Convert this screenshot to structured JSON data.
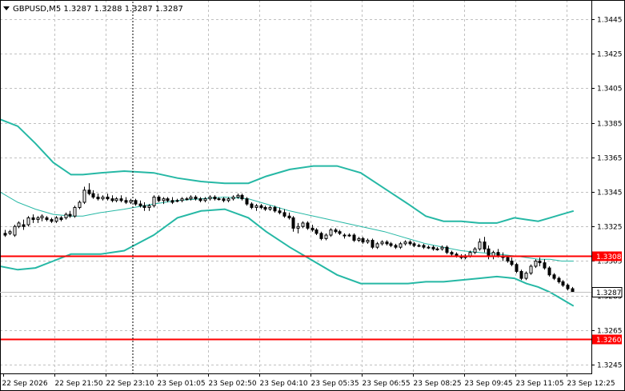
{
  "window": {
    "title": "GBPUSD,M5  1.3287 1.3288 1.3287 1.3287",
    "collapse_icon": "triangle-down-icon"
  },
  "colors": {
    "background": "#ffffff",
    "grid": "#c0c0c0",
    "axis": "#000000",
    "candles": "#000000",
    "bollinger": "#26b8a5",
    "level_line": "#ff0000",
    "level_tag_text": "#ffffff",
    "price_tag_bg": "#ffffff",
    "price_tag_text": "#000000"
  },
  "chart_data": {
    "type": "candlestick",
    "symbol": "GBPUSD",
    "timeframe": "M5",
    "ohlc_header": {
      "open": 1.3287,
      "high": 1.3288,
      "low": 1.3287,
      "close": 1.3287
    },
    "y_ticks": [
      "1.3445",
      "1.3425",
      "1.3405",
      "1.3385",
      "1.3365",
      "1.3345",
      "1.3325",
      "1.3305",
      "1.3285",
      "1.3265",
      "1.3245"
    ],
    "ylim": [
      1.324,
      1.3456
    ],
    "x_labels": [
      "22 Sep 2026",
      "22 Sep 21:50",
      "22 Sep 23:10",
      "23 Sep 01:05",
      "23 Sep 02:50",
      "23 Sep 04:10",
      "23 Sep 05:35",
      "23 Sep 06:55",
      "23 Sep 08:25",
      "23 Sep 09:45",
      "23 Sep 11:05",
      "23 Sep 12:25"
    ],
    "grid": true,
    "current_price": "1.3287",
    "levels": [
      {
        "label": "1.3308",
        "value": 1.3308
      },
      {
        "label": "1.3260",
        "value": 1.326
      }
    ],
    "bollinger_bands": {
      "x": [
        0,
        0.03,
        0.06,
        0.09,
        0.12,
        0.14,
        0.17,
        0.21,
        0.26,
        0.3,
        0.34,
        0.38,
        0.42,
        0.45,
        0.49,
        0.53,
        0.57,
        0.61,
        0.65,
        0.69,
        0.72,
        0.75,
        0.78,
        0.81,
        0.84,
        0.87,
        0.89,
        0.91,
        0.93,
        0.95,
        0.97
      ],
      "upper": [
        1.3387,
        1.3383,
        1.3373,
        1.3362,
        1.3355,
        1.3355,
        1.3356,
        1.3357,
        1.3356,
        1.3353,
        1.3351,
        1.335,
        1.335,
        1.3354,
        1.3358,
        1.336,
        1.336,
        1.3356,
        1.3347,
        1.3338,
        1.3331,
        1.3328,
        1.3328,
        1.3327,
        1.3327,
        1.333,
        1.3329,
        1.3328,
        1.333,
        1.3332,
        1.3334
      ],
      "middle": [
        1.3345,
        1.3339,
        1.3335,
        1.3332,
        1.3331,
        1.3331,
        1.3333,
        1.3335,
        1.3338,
        1.334,
        1.3341,
        1.3342,
        1.3341,
        1.3338,
        1.3334,
        1.3331,
        1.3328,
        1.3325,
        1.3322,
        1.3318,
        1.3315,
        1.3313,
        1.3311,
        1.331,
        1.3309,
        1.3308,
        1.3307,
        1.3306,
        1.3306,
        1.3305,
        1.3305
      ],
      "lower": [
        1.3302,
        1.33,
        1.3301,
        1.3305,
        1.3309,
        1.3309,
        1.3309,
        1.3311,
        1.332,
        1.333,
        1.3334,
        1.3335,
        1.333,
        1.3322,
        1.3313,
        1.3305,
        1.3297,
        1.3292,
        1.3292,
        1.3292,
        1.3293,
        1.3293,
        1.3294,
        1.3295,
        1.3296,
        1.3295,
        1.3292,
        1.329,
        1.3287,
        1.3283,
        1.3279
      ]
    },
    "candles": [
      [
        1.3321,
        1.3323,
        1.3319,
        1.332
      ],
      [
        1.3321,
        1.3323,
        1.332,
        1.3322
      ],
      [
        1.332,
        1.3326,
        1.3319,
        1.3325
      ],
      [
        1.3325,
        1.3328,
        1.3324,
        1.3327
      ],
      [
        1.3326,
        1.3329,
        1.3323,
        1.3325
      ],
      [
        1.3326,
        1.3331,
        1.3325,
        1.333
      ],
      [
        1.333,
        1.3332,
        1.3327,
        1.3329
      ],
      [
        1.3329,
        1.3331,
        1.3327,
        1.333
      ],
      [
        1.333,
        1.3332,
        1.3328,
        1.3331
      ],
      [
        1.333,
        1.3331,
        1.3328,
        1.3329
      ],
      [
        1.3329,
        1.333,
        1.3327,
        1.3328
      ],
      [
        1.3328,
        1.3331,
        1.3327,
        1.333
      ],
      [
        1.333,
        1.3331,
        1.3328,
        1.3329
      ],
      [
        1.333,
        1.3333,
        1.3329,
        1.3332
      ],
      [
        1.3332,
        1.3334,
        1.333,
        1.3331
      ],
      [
        1.3331,
        1.3337,
        1.333,
        1.3336
      ],
      [
        1.3336,
        1.334,
        1.3335,
        1.3339
      ],
      [
        1.3339,
        1.3348,
        1.3338,
        1.3346
      ],
      [
        1.3346,
        1.335,
        1.3343,
        1.3344
      ],
      [
        1.3344,
        1.3346,
        1.3341,
        1.3342
      ],
      [
        1.3342,
        1.3344,
        1.334,
        1.3341
      ],
      [
        1.3341,
        1.3343,
        1.334,
        1.3342
      ],
      [
        1.3342,
        1.3344,
        1.334,
        1.3341
      ],
      [
        1.3341,
        1.3343,
        1.3339,
        1.334
      ],
      [
        1.334,
        1.3342,
        1.3339,
        1.3341
      ],
      [
        1.3341,
        1.3343,
        1.3339,
        1.334
      ],
      [
        1.334,
        1.3342,
        1.3338,
        1.3339
      ],
      [
        1.3339,
        1.3341,
        1.3338,
        1.334
      ],
      [
        1.334,
        1.3341,
        1.3337,
        1.3338
      ],
      [
        1.3338,
        1.334,
        1.3336,
        1.3337
      ],
      [
        1.3337,
        1.3339,
        1.3334,
        1.3336
      ],
      [
        1.3336,
        1.3338,
        1.3334,
        1.3337
      ],
      [
        1.3337,
        1.3343,
        1.3336,
        1.3342
      ],
      [
        1.3342,
        1.3343,
        1.3339,
        1.334
      ],
      [
        1.334,
        1.3342,
        1.3338,
        1.3341
      ],
      [
        1.3341,
        1.3342,
        1.3339,
        1.334
      ],
      [
        1.334,
        1.3342,
        1.3338,
        1.3339
      ],
      [
        1.334,
        1.3341,
        1.3339,
        1.334
      ],
      [
        1.334,
        1.3342,
        1.3339,
        1.3341
      ],
      [
        1.3341,
        1.3342,
        1.334,
        1.3341
      ],
      [
        1.3341,
        1.3343,
        1.334,
        1.3342
      ],
      [
        1.3342,
        1.3343,
        1.334,
        1.3341
      ],
      [
        1.3341,
        1.3342,
        1.3339,
        1.334
      ],
      [
        1.334,
        1.3342,
        1.3339,
        1.3341
      ],
      [
        1.3341,
        1.3343,
        1.334,
        1.3342
      ],
      [
        1.3342,
        1.3343,
        1.334,
        1.3341
      ],
      [
        1.3341,
        1.3342,
        1.334,
        1.3341
      ],
      [
        1.3341,
        1.3342,
        1.3339,
        1.334
      ],
      [
        1.334,
        1.3342,
        1.3339,
        1.3341
      ],
      [
        1.3341,
        1.3343,
        1.334,
        1.3342
      ],
      [
        1.3342,
        1.3344,
        1.3341,
        1.3343
      ],
      [
        1.3343,
        1.3344,
        1.334,
        1.3341
      ],
      [
        1.3341,
        1.3342,
        1.3337,
        1.3338
      ],
      [
        1.3338,
        1.3339,
        1.3335,
        1.3336
      ],
      [
        1.3336,
        1.3338,
        1.3334,
        1.3337
      ],
      [
        1.3337,
        1.3338,
        1.3335,
        1.3336
      ],
      [
        1.3336,
        1.3337,
        1.3334,
        1.3335
      ],
      [
        1.3335,
        1.3337,
        1.3334,
        1.3336
      ],
      [
        1.3336,
        1.3337,
        1.3333,
        1.3334
      ],
      [
        1.3334,
        1.3336,
        1.3332,
        1.3333
      ],
      [
        1.3333,
        1.3335,
        1.333,
        1.3331
      ],
      [
        1.3331,
        1.3333,
        1.3329,
        1.333
      ],
      [
        1.333,
        1.3331,
        1.3322,
        1.3324
      ],
      [
        1.3324,
        1.3327,
        1.3321,
        1.3325
      ],
      [
        1.3325,
        1.3328,
        1.3324,
        1.3327
      ],
      [
        1.3327,
        1.3328,
        1.3323,
        1.3324
      ],
      [
        1.3324,
        1.3326,
        1.3322,
        1.3323
      ],
      [
        1.3323,
        1.3324,
        1.332,
        1.3321
      ],
      [
        1.3321,
        1.3322,
        1.3317,
        1.3318
      ],
      [
        1.3318,
        1.3321,
        1.3317,
        1.332
      ],
      [
        1.332,
        1.3324,
        1.3319,
        1.3323
      ],
      [
        1.3323,
        1.3324,
        1.3321,
        1.3322
      ],
      [
        1.3322,
        1.3323,
        1.332,
        1.3321
      ],
      [
        1.332,
        1.3321,
        1.3318,
        1.332
      ],
      [
        1.332,
        1.3321,
        1.3319,
        1.332
      ],
      [
        1.332,
        1.3321,
        1.3316,
        1.3317
      ],
      [
        1.3317,
        1.3319,
        1.3316,
        1.3318
      ],
      [
        1.3318,
        1.3319,
        1.3315,
        1.3316
      ],
      [
        1.3316,
        1.3318,
        1.3315,
        1.3317
      ],
      [
        1.3317,
        1.3318,
        1.3312,
        1.3313
      ],
      [
        1.3313,
        1.3316,
        1.3312,
        1.3315
      ],
      [
        1.3315,
        1.3317,
        1.3314,
        1.3316
      ],
      [
        1.3316,
        1.3317,
        1.3314,
        1.3315
      ],
      [
        1.3315,
        1.3316,
        1.3313,
        1.3314
      ],
      [
        1.3314,
        1.3315,
        1.3312,
        1.3313
      ],
      [
        1.3313,
        1.3316,
        1.3312,
        1.3315
      ],
      [
        1.3315,
        1.3317,
        1.3314,
        1.3316
      ],
      [
        1.3316,
        1.3317,
        1.3314,
        1.3315
      ],
      [
        1.3315,
        1.3316,
        1.3313,
        1.3314
      ],
      [
        1.3314,
        1.3315,
        1.3313,
        1.3314
      ],
      [
        1.3314,
        1.3315,
        1.3312,
        1.3313
      ],
      [
        1.3313,
        1.3314,
        1.3312,
        1.3313
      ],
      [
        1.3313,
        1.3314,
        1.3311,
        1.3312
      ],
      [
        1.3312,
        1.3313,
        1.3311,
        1.3312
      ],
      [
        1.3312,
        1.3314,
        1.3311,
        1.3313
      ],
      [
        1.3313,
        1.3314,
        1.3309,
        1.331
      ],
      [
        1.331,
        1.3311,
        1.3308,
        1.3309
      ],
      [
        1.3309,
        1.331,
        1.3307,
        1.3308
      ],
      [
        1.3308,
        1.3309,
        1.3306,
        1.3307
      ],
      [
        1.3307,
        1.3309,
        1.3306,
        1.3308
      ],
      [
        1.3308,
        1.3311,
        1.3307,
        1.331
      ],
      [
        1.331,
        1.3313,
        1.3309,
        1.3312
      ],
      [
        1.3312,
        1.3318,
        1.3311,
        1.3316
      ],
      [
        1.3316,
        1.3319,
        1.331,
        1.3312
      ],
      [
        1.3312,
        1.3314,
        1.3306,
        1.3308
      ],
      [
        1.3308,
        1.3311,
        1.3306,
        1.331
      ],
      [
        1.331,
        1.3312,
        1.3307,
        1.3308
      ],
      [
        1.3308,
        1.331,
        1.3305,
        1.3307
      ],
      [
        1.3307,
        1.3308,
        1.3304,
        1.3305
      ],
      [
        1.3305,
        1.3307,
        1.3302,
        1.3303
      ],
      [
        1.3303,
        1.3304,
        1.3298,
        1.3299
      ],
      [
        1.3299,
        1.33,
        1.3294,
        1.3295
      ],
      [
        1.3295,
        1.3299,
        1.3294,
        1.3298
      ],
      [
        1.3298,
        1.3303,
        1.3297,
        1.3302
      ],
      [
        1.3302,
        1.3306,
        1.3301,
        1.3305
      ],
      [
        1.3305,
        1.3307,
        1.3302,
        1.3304
      ],
      [
        1.3304,
        1.3306,
        1.33,
        1.3301
      ],
      [
        1.3301,
        1.3302,
        1.3296,
        1.3297
      ],
      [
        1.3297,
        1.3298,
        1.3294,
        1.3295
      ],
      [
        1.3295,
        1.3296,
        1.3292,
        1.3293
      ],
      [
        1.3293,
        1.3294,
        1.329,
        1.3291
      ],
      [
        1.3291,
        1.3292,
        1.3288,
        1.3289
      ],
      [
        1.3289,
        1.329,
        1.3287,
        1.3287
      ]
    ]
  }
}
